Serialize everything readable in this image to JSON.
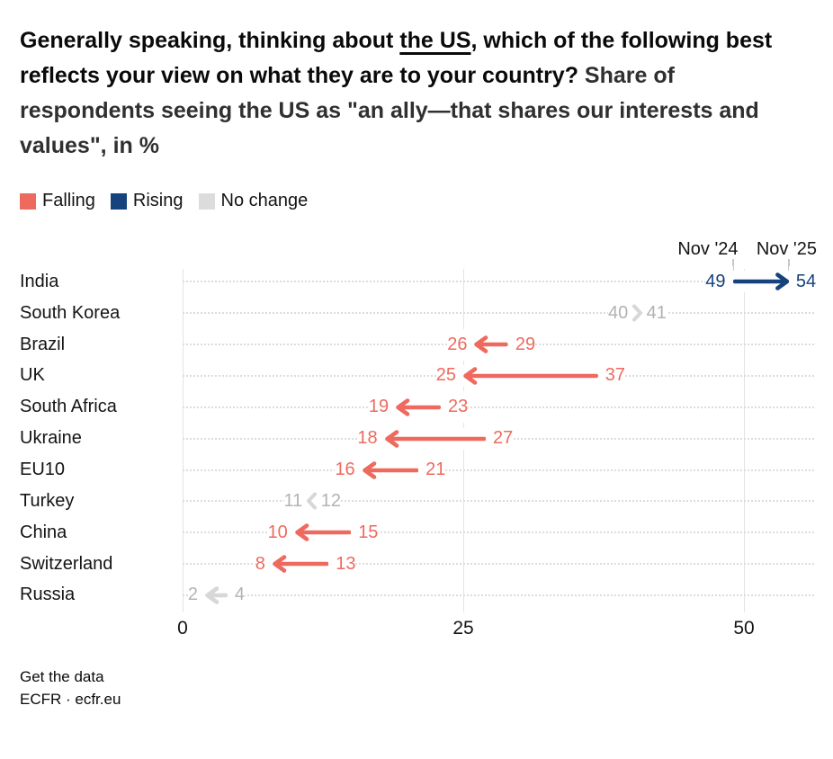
{
  "title": {
    "bold_before": "Generally speaking, thinking about ",
    "underlined": "the US",
    "bold_after": ", which of the following best reflects your view on what they are to your country?",
    "regular": " Share of respondents seeing the US as \"an ally—that shares our interests and values\", in %"
  },
  "legend": [
    {
      "label": "Falling",
      "color": "#ee6a5f"
    },
    {
      "label": "Rising",
      "color": "#16427d"
    },
    {
      "label": "No change",
      "color": "#dcdcdc"
    }
  ],
  "columns": {
    "start": "Nov '24",
    "end": "Nov '25"
  },
  "footer": {
    "line1": "Get the data",
    "line2": "ECFR · ecfr.eu"
  },
  "colors": {
    "falling_text": "#ee6a5f",
    "falling_marker": "#ee6a5f",
    "rising_text": "#16427d",
    "rising_marker": "#16427d",
    "nochange_text": "#b2b2b2",
    "nochange_marker": "#d7d7d7",
    "gridline": "#e4e4e4",
    "dotted_line": "#dcdcdc",
    "column_tick": "#c8c8c8"
  },
  "chart_data": {
    "type": "arrow",
    "title": "Generally speaking, thinking about the US, which of the following best reflects your view on what they are to your country?",
    "subtitle": "Share of respondents seeing the US as \"an ally—that shares our interests and values\", in %",
    "legend": [
      "Falling",
      "Rising",
      "No change"
    ],
    "legend_position": "top",
    "column_labels": [
      "Nov '24",
      "Nov '25"
    ],
    "x_ticks": [
      0,
      25,
      50
    ],
    "xlim": [
      0,
      56
    ],
    "grid": "vertical",
    "categories": [
      "India",
      "South Korea",
      "Brazil",
      "UK",
      "South Africa",
      "Ukraine",
      "EU10",
      "Turkey",
      "China",
      "Switzerland",
      "Russia"
    ],
    "series": [
      {
        "name": "Nov '24",
        "values": [
          49,
          40,
          29,
          37,
          23,
          27,
          21,
          12,
          15,
          13,
          4
        ]
      },
      {
        "name": "Nov '25",
        "values": [
          54,
          41,
          26,
          25,
          19,
          18,
          16,
          11,
          10,
          8,
          2
        ]
      }
    ],
    "rows": [
      {
        "country": "India",
        "nov24": 49,
        "nov25": 54,
        "trend": "rising",
        "marker": "arrow"
      },
      {
        "country": "South Korea",
        "nov24": 40,
        "nov25": 41,
        "trend": "nochange",
        "marker": "chevron"
      },
      {
        "country": "Brazil",
        "nov24": 29,
        "nov25": 26,
        "trend": "falling",
        "marker": "arrow"
      },
      {
        "country": "UK",
        "nov24": 37,
        "nov25": 25,
        "trend": "falling",
        "marker": "arrow"
      },
      {
        "country": "South Africa",
        "nov24": 23,
        "nov25": 19,
        "trend": "falling",
        "marker": "arrow"
      },
      {
        "country": "Ukraine",
        "nov24": 27,
        "nov25": 18,
        "trend": "falling",
        "marker": "arrow"
      },
      {
        "country": "EU10",
        "nov24": 21,
        "nov25": 16,
        "trend": "falling",
        "marker": "arrow"
      },
      {
        "country": "Turkey",
        "nov24": 12,
        "nov25": 11,
        "trend": "nochange",
        "marker": "chevron"
      },
      {
        "country": "China",
        "nov24": 15,
        "nov25": 10,
        "trend": "falling",
        "marker": "arrow"
      },
      {
        "country": "Switzerland",
        "nov24": 13,
        "nov25": 8,
        "trend": "falling",
        "marker": "arrow"
      },
      {
        "country": "Russia",
        "nov24": 4,
        "nov25": 2,
        "trend": "nochange",
        "marker": "arrow"
      }
    ]
  }
}
